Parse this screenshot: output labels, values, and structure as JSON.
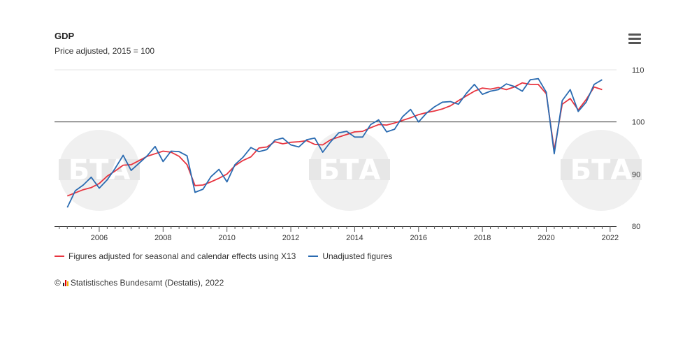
{
  "header": {
    "title": "GDP",
    "subtitle": "Price adjusted, 2015 = 100"
  },
  "menu": {
    "icon": "hamburger-menu-icon"
  },
  "legend": {
    "items": [
      {
        "label": "Figures adjusted for seasonal and calendar effects using X13",
        "color": "#e8343f"
      },
      {
        "label": "Unadjusted figures",
        "color": "#2a6bb1"
      }
    ]
  },
  "credits": {
    "copyright": "©",
    "text": "Statistisches Bundesamt (Destatis), 2022"
  },
  "watermark": {
    "text": "БТА"
  },
  "chart_data": {
    "type": "line",
    "title": "GDP",
    "subtitle": "Price adjusted, 2015 = 100",
    "xlim": [
      2004.6,
      2022.2
    ],
    "ylim": [
      80,
      110
    ],
    "x_ticks": [
      2006,
      2008,
      2010,
      2012,
      2014,
      2016,
      2018,
      2020,
      2022
    ],
    "y_ticks": [
      80,
      90,
      100,
      110
    ],
    "reference_line": 100,
    "grid": false,
    "legend_position": "bottom-left",
    "series": [
      {
        "name": "Figures adjusted for seasonal and calendar effects using X13",
        "color": "#e8343f",
        "x": [
          2005.0,
          2005.25,
          2005.5,
          2005.75,
          2006.0,
          2006.25,
          2006.5,
          2006.75,
          2007.0,
          2007.25,
          2007.5,
          2007.75,
          2008.0,
          2008.25,
          2008.5,
          2008.75,
          2009.0,
          2009.25,
          2009.5,
          2009.75,
          2010.0,
          2010.25,
          2010.5,
          2010.75,
          2011.0,
          2011.25,
          2011.5,
          2011.75,
          2012.0,
          2012.25,
          2012.5,
          2012.75,
          2013.0,
          2013.25,
          2013.5,
          2013.75,
          2014.0,
          2014.25,
          2014.5,
          2014.75,
          2015.0,
          2015.25,
          2015.5,
          2015.75,
          2016.0,
          2016.25,
          2016.5,
          2016.75,
          2017.0,
          2017.25,
          2017.5,
          2017.75,
          2018.0,
          2018.25,
          2018.5,
          2018.75,
          2019.0,
          2019.25,
          2019.5,
          2019.75,
          2020.0,
          2020.25,
          2020.5,
          2020.75,
          2021.0,
          2021.25,
          2021.5,
          2021.75
        ],
        "y": [
          85.8,
          86.4,
          87.0,
          87.4,
          88.2,
          89.6,
          90.6,
          91.7,
          91.8,
          92.6,
          93.4,
          93.9,
          94.4,
          94.2,
          93.4,
          91.8,
          87.8,
          87.9,
          88.5,
          89.2,
          90.0,
          91.6,
          92.6,
          93.3,
          95.0,
          95.2,
          96.2,
          95.8,
          96.1,
          96.2,
          96.4,
          95.7,
          95.6,
          96.6,
          97.1,
          97.6,
          98.1,
          98.2,
          98.9,
          99.5,
          99.4,
          99.8,
          100.3,
          100.8,
          101.4,
          101.8,
          102.1,
          102.5,
          103.1,
          104.1,
          105.0,
          105.9,
          106.5,
          106.3,
          106.6,
          106.2,
          106.7,
          107.5,
          107.2,
          107.2,
          105.4,
          94.6,
          103.4,
          104.5,
          102.3,
          104.3,
          106.7,
          106.2
        ]
      },
      {
        "name": "Unadjusted figures",
        "color": "#2a6bb1",
        "x": [
          2005.0,
          2005.25,
          2005.5,
          2005.75,
          2006.0,
          2006.25,
          2006.5,
          2006.75,
          2007.0,
          2007.25,
          2007.5,
          2007.75,
          2008.0,
          2008.25,
          2008.5,
          2008.75,
          2009.0,
          2009.25,
          2009.5,
          2009.75,
          2010.0,
          2010.25,
          2010.5,
          2010.75,
          2011.0,
          2011.25,
          2011.5,
          2011.75,
          2012.0,
          2012.25,
          2012.5,
          2012.75,
          2013.0,
          2013.25,
          2013.5,
          2013.75,
          2014.0,
          2014.25,
          2014.5,
          2014.75,
          2015.0,
          2015.25,
          2015.5,
          2015.75,
          2016.0,
          2016.25,
          2016.5,
          2016.75,
          2017.0,
          2017.25,
          2017.5,
          2017.75,
          2018.0,
          2018.25,
          2018.5,
          2018.75,
          2019.0,
          2019.25,
          2019.5,
          2019.75,
          2020.0,
          2020.25,
          2020.5,
          2020.75,
          2021.0,
          2021.25,
          2021.5,
          2021.75
        ],
        "y": [
          83.6,
          86.8,
          87.9,
          89.4,
          87.3,
          88.9,
          91.1,
          93.6,
          90.7,
          92.1,
          93.5,
          95.3,
          92.4,
          94.4,
          94.3,
          93.5,
          86.5,
          87.1,
          89.5,
          90.9,
          88.5,
          91.8,
          93.2,
          95.1,
          94.3,
          94.7,
          96.5,
          96.9,
          95.6,
          95.2,
          96.6,
          96.9,
          94.2,
          96.2,
          97.9,
          98.2,
          97.1,
          97.1,
          99.5,
          100.4,
          98.1,
          98.6,
          101.0,
          102.4,
          100.0,
          101.7,
          102.9,
          103.8,
          103.9,
          103.4,
          105.5,
          107.2,
          105.3,
          105.9,
          106.2,
          107.3,
          106.8,
          105.9,
          108.1,
          108.3,
          105.7,
          93.9,
          104.1,
          106.2,
          102.0,
          103.8,
          107.2,
          108.1
        ]
      }
    ]
  }
}
